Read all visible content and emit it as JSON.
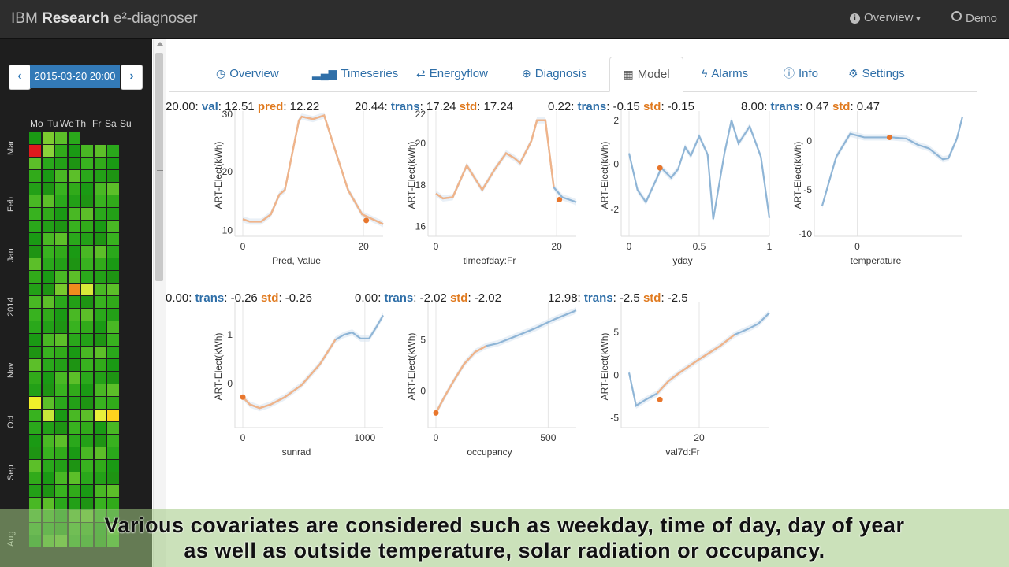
{
  "app": {
    "brand_prefix": "IBM",
    "brand_bold": "Research",
    "brand_suffix": "e²-diagnoser"
  },
  "nav": {
    "overview": "Overview",
    "demo": "Demo"
  },
  "sidebar": {
    "date": "2015-03-20 20:00",
    "prev": "‹",
    "next": "›",
    "weekdays": [
      "Mo",
      "Tu",
      "We",
      "Th",
      "Fr",
      "Sa",
      "Su"
    ],
    "months": [
      "Mar",
      "Feb",
      "Jan",
      "2014",
      "Nov",
      "Oct",
      "Sep",
      "Aug"
    ]
  },
  "tabs": [
    {
      "label": "Overview",
      "icon": "clock-icon"
    },
    {
      "label": "Timeseries",
      "icon": "bar-chart-icon"
    },
    {
      "label": "Energyflow",
      "icon": "shuffle-icon"
    },
    {
      "label": "Diagnosis",
      "icon": "crosshair-icon"
    },
    {
      "label": "Model",
      "icon": "grid-icon"
    },
    {
      "label": "Alarms",
      "icon": "bolt-icon"
    },
    {
      "label": "Info",
      "icon": "info-icon"
    },
    {
      "label": "Settings",
      "icon": "gear-icon"
    }
  ],
  "active_tab": "Model",
  "plots": [
    {
      "head": "20.00:",
      "k1": "val",
      "v1": "12.51",
      "k2": "pred",
      "v2": "12.22",
      "xlabel": "Pred, Value",
      "ylabel": "ART-Elect(kWh)",
      "xticks": [
        "0",
        "20"
      ],
      "yticks": [
        "30",
        "20",
        "10"
      ]
    },
    {
      "head": "20.44:",
      "k1": "trans",
      "v1": "17.24",
      "k2": "std",
      "v2": "17.24",
      "xlabel": "timeofday:Fr",
      "ylabel": "ART-Elect(kWh)",
      "xticks": [
        "0",
        "20"
      ],
      "yticks": [
        "22",
        "20",
        "18",
        "16"
      ]
    },
    {
      "head": "0.22:",
      "k1": "trans",
      "v1": "-0.15",
      "k2": "std",
      "v2": "-0.15",
      "xlabel": "yday",
      "ylabel": "ART-Elect(kWh)",
      "xticks": [
        "0",
        "0.5",
        "1"
      ],
      "yticks": [
        "2",
        "0",
        "-2"
      ]
    },
    {
      "head": "8.00:",
      "k1": "trans",
      "v1": "0.47",
      "k2": "std",
      "v2": "0.47",
      "xlabel": "temperature",
      "ylabel": "ART-Elect(kWh)",
      "xticks": [
        "0"
      ],
      "yticks": [
        "0",
        "-5",
        "-10"
      ]
    },
    {
      "head": "0.00:",
      "k1": "trans",
      "v1": "-0.26",
      "k2": "std",
      "v2": "-0.26",
      "xlabel": "sunrad",
      "ylabel": "ART-Elect(kWh)",
      "xticks": [
        "0",
        "1000"
      ],
      "yticks": [
        "1",
        "0"
      ]
    },
    {
      "head": "0.00:",
      "k1": "trans",
      "v1": "-2.02",
      "k2": "std",
      "v2": "-2.02",
      "xlabel": "occupancy",
      "ylabel": "ART-Elect(kWh)",
      "xticks": [
        "0",
        "500"
      ],
      "yticks": [
        "5",
        "0"
      ]
    },
    {
      "head": "12.98:",
      "k1": "trans",
      "v1": "-2.5",
      "k2": "std",
      "v2": "-2.5",
      "xlabel": "val7d:Fr",
      "ylabel": "ART-Elect(kWh)",
      "xticks": [
        "20"
      ],
      "yticks": [
        "5",
        "0",
        "-5"
      ]
    }
  ],
  "colors": {
    "blue": "#8fb5d6",
    "orange": "#f0b48a",
    "dot": "#e8762c",
    "key_blue": "#2f6fa8",
    "key_orange": "#e07a1f"
  },
  "caption": {
    "line1": "Various covariates are considered such as weekday, time of day, day of year",
    "line2": "as well as outside temperature, solar radiation or occupancy."
  }
}
